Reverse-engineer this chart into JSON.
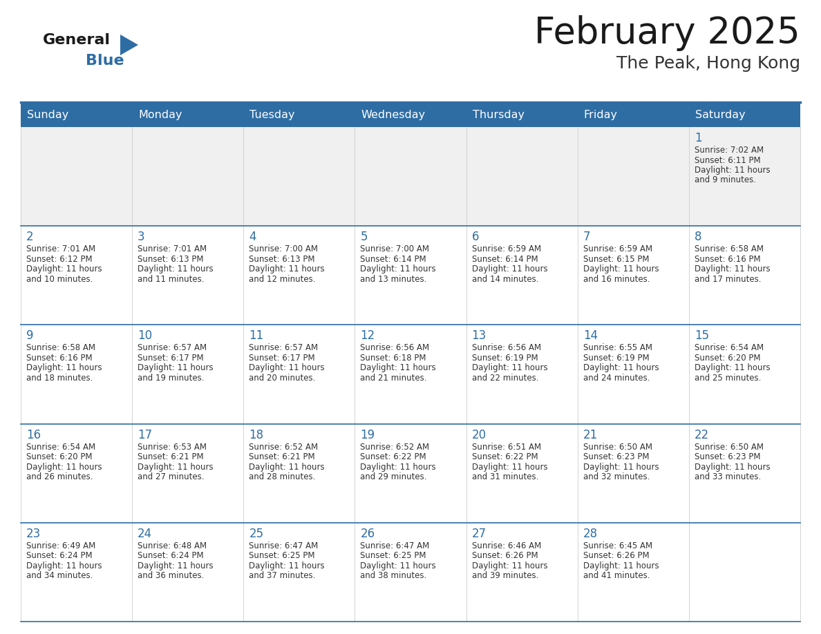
{
  "title": "February 2025",
  "subtitle": "The Peak, Hong Kong",
  "header_bg": "#2E6DA4",
  "header_text_color": "#FFFFFF",
  "cell_bg_normal": "#FFFFFF",
  "cell_bg_week1": "#F0F0F0",
  "day_names": [
    "Sunday",
    "Monday",
    "Tuesday",
    "Wednesday",
    "Thursday",
    "Friday",
    "Saturday"
  ],
  "title_color": "#1a1a1a",
  "subtitle_color": "#333333",
  "line_color": "#2E6DA4",
  "day_number_color": "#2E6DA4",
  "info_color": "#333333",
  "logo_general_color": "#1a1a1a",
  "logo_blue_color": "#2E6DA4",
  "logo_triangle_color": "#2E6DA4",
  "days": [
    {
      "date": 1,
      "col": 6,
      "row": 0,
      "sunrise": "7:02 AM",
      "sunset": "6:11 PM",
      "daylight": "11 hours and 9 minutes."
    },
    {
      "date": 2,
      "col": 0,
      "row": 1,
      "sunrise": "7:01 AM",
      "sunset": "6:12 PM",
      "daylight": "11 hours and 10 minutes."
    },
    {
      "date": 3,
      "col": 1,
      "row": 1,
      "sunrise": "7:01 AM",
      "sunset": "6:13 PM",
      "daylight": "11 hours and 11 minutes."
    },
    {
      "date": 4,
      "col": 2,
      "row": 1,
      "sunrise": "7:00 AM",
      "sunset": "6:13 PM",
      "daylight": "11 hours and 12 minutes."
    },
    {
      "date": 5,
      "col": 3,
      "row": 1,
      "sunrise": "7:00 AM",
      "sunset": "6:14 PM",
      "daylight": "11 hours and 13 minutes."
    },
    {
      "date": 6,
      "col": 4,
      "row": 1,
      "sunrise": "6:59 AM",
      "sunset": "6:14 PM",
      "daylight": "11 hours and 14 minutes."
    },
    {
      "date": 7,
      "col": 5,
      "row": 1,
      "sunrise": "6:59 AM",
      "sunset": "6:15 PM",
      "daylight": "11 hours and 16 minutes."
    },
    {
      "date": 8,
      "col": 6,
      "row": 1,
      "sunrise": "6:58 AM",
      "sunset": "6:16 PM",
      "daylight": "11 hours and 17 minutes."
    },
    {
      "date": 9,
      "col": 0,
      "row": 2,
      "sunrise": "6:58 AM",
      "sunset": "6:16 PM",
      "daylight": "11 hours and 18 minutes."
    },
    {
      "date": 10,
      "col": 1,
      "row": 2,
      "sunrise": "6:57 AM",
      "sunset": "6:17 PM",
      "daylight": "11 hours and 19 minutes."
    },
    {
      "date": 11,
      "col": 2,
      "row": 2,
      "sunrise": "6:57 AM",
      "sunset": "6:17 PM",
      "daylight": "11 hours and 20 minutes."
    },
    {
      "date": 12,
      "col": 3,
      "row": 2,
      "sunrise": "6:56 AM",
      "sunset": "6:18 PM",
      "daylight": "11 hours and 21 minutes."
    },
    {
      "date": 13,
      "col": 4,
      "row": 2,
      "sunrise": "6:56 AM",
      "sunset": "6:19 PM",
      "daylight": "11 hours and 22 minutes."
    },
    {
      "date": 14,
      "col": 5,
      "row": 2,
      "sunrise": "6:55 AM",
      "sunset": "6:19 PM",
      "daylight": "11 hours and 24 minutes."
    },
    {
      "date": 15,
      "col": 6,
      "row": 2,
      "sunrise": "6:54 AM",
      "sunset": "6:20 PM",
      "daylight": "11 hours and 25 minutes."
    },
    {
      "date": 16,
      "col": 0,
      "row": 3,
      "sunrise": "6:54 AM",
      "sunset": "6:20 PM",
      "daylight": "11 hours and 26 minutes."
    },
    {
      "date": 17,
      "col": 1,
      "row": 3,
      "sunrise": "6:53 AM",
      "sunset": "6:21 PM",
      "daylight": "11 hours and 27 minutes."
    },
    {
      "date": 18,
      "col": 2,
      "row": 3,
      "sunrise": "6:52 AM",
      "sunset": "6:21 PM",
      "daylight": "11 hours and 28 minutes."
    },
    {
      "date": 19,
      "col": 3,
      "row": 3,
      "sunrise": "6:52 AM",
      "sunset": "6:22 PM",
      "daylight": "11 hours and 29 minutes."
    },
    {
      "date": 20,
      "col": 4,
      "row": 3,
      "sunrise": "6:51 AM",
      "sunset": "6:22 PM",
      "daylight": "11 hours and 31 minutes."
    },
    {
      "date": 21,
      "col": 5,
      "row": 3,
      "sunrise": "6:50 AM",
      "sunset": "6:23 PM",
      "daylight": "11 hours and 32 minutes."
    },
    {
      "date": 22,
      "col": 6,
      "row": 3,
      "sunrise": "6:50 AM",
      "sunset": "6:23 PM",
      "daylight": "11 hours and 33 minutes."
    },
    {
      "date": 23,
      "col": 0,
      "row": 4,
      "sunrise": "6:49 AM",
      "sunset": "6:24 PM",
      "daylight": "11 hours and 34 minutes."
    },
    {
      "date": 24,
      "col": 1,
      "row": 4,
      "sunrise": "6:48 AM",
      "sunset": "6:24 PM",
      "daylight": "11 hours and 36 minutes."
    },
    {
      "date": 25,
      "col": 2,
      "row": 4,
      "sunrise": "6:47 AM",
      "sunset": "6:25 PM",
      "daylight": "11 hours and 37 minutes."
    },
    {
      "date": 26,
      "col": 3,
      "row": 4,
      "sunrise": "6:47 AM",
      "sunset": "6:25 PM",
      "daylight": "11 hours and 38 minutes."
    },
    {
      "date": 27,
      "col": 4,
      "row": 4,
      "sunrise": "6:46 AM",
      "sunset": "6:26 PM",
      "daylight": "11 hours and 39 minutes."
    },
    {
      "date": 28,
      "col": 5,
      "row": 4,
      "sunrise": "6:45 AM",
      "sunset": "6:26 PM",
      "daylight": "11 hours and 41 minutes."
    }
  ]
}
